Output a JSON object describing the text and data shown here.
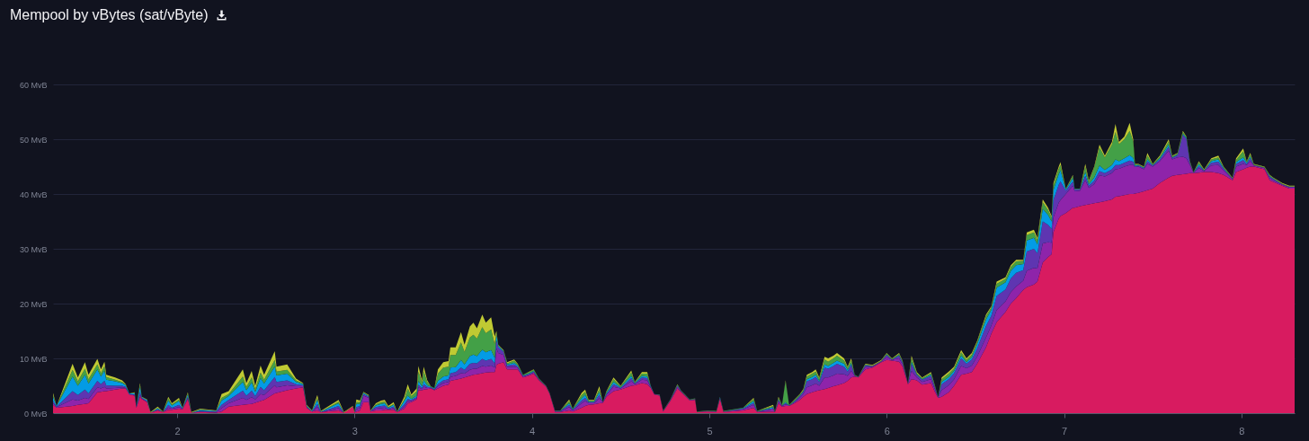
{
  "chart_data": {
    "type": "area",
    "title": "Mempool by vBytes (sat/vByte)",
    "stacked": true,
    "grid": "y",
    "xlim": [
      1.3,
      8.3
    ],
    "xticks": [
      2,
      3,
      4,
      5,
      6,
      7,
      8
    ],
    "ylim": [
      0,
      60
    ],
    "yticks": [
      {
        "value": 0,
        "label": "0 MvB"
      },
      {
        "value": 10,
        "label": "10 MvB"
      },
      {
        "value": 20,
        "label": "20 MvB"
      },
      {
        "value": 30,
        "label": "30 MvB"
      },
      {
        "value": 40,
        "label": "40 MvB"
      },
      {
        "value": 50,
        "label": "50 MvB"
      },
      {
        "value": 60,
        "label": "60 MvB"
      }
    ],
    "x": [
      1.3,
      1.32,
      1.41,
      1.44,
      1.48,
      1.5,
      1.55,
      1.57,
      1.59,
      1.6,
      1.65,
      1.69,
      1.71,
      1.73,
      1.76,
      1.77,
      1.79,
      1.8,
      1.83,
      1.85,
      1.89,
      1.92,
      1.95,
      1.97,
      2.01,
      2.03,
      2.06,
      2.08,
      2.13,
      2.22,
      2.25,
      2.29,
      2.37,
      2.39,
      2.42,
      2.44,
      2.47,
      2.49,
      2.55,
      2.56,
      2.62,
      2.67,
      2.71,
      2.73,
      2.76,
      2.79,
      2.81,
      2.91,
      2.94,
      2.99,
      3.0,
      3.01,
      3.03,
      3.05,
      3.08,
      3.09,
      3.12,
      3.15,
      3.17,
      3.19,
      3.22,
      3.24,
      3.28,
      3.3,
      3.32,
      3.35,
      3.36,
      3.38,
      3.39,
      3.41,
      3.43,
      3.45,
      3.47,
      3.5,
      3.53,
      3.54,
      3.57,
      3.6,
      3.62,
      3.65,
      3.67,
      3.69,
      3.72,
      3.74,
      3.77,
      3.79,
      3.8,
      3.81,
      3.84,
      3.86,
      3.9,
      3.92,
      3.95,
      3.98,
      4.01,
      4.04,
      4.08,
      4.1,
      4.13,
      4.16,
      4.21,
      4.23,
      4.28,
      4.3,
      4.32,
      4.35,
      4.38,
      4.4,
      4.42,
      4.46,
      4.5,
      4.56,
      4.58,
      4.62,
      4.65,
      4.67,
      4.69,
      4.72,
      4.74,
      4.78,
      4.82,
      4.84,
      4.89,
      4.92,
      4.93,
      4.99,
      5.04,
      5.06,
      5.08,
      5.19,
      5.25,
      5.27,
      5.36,
      5.37,
      5.39,
      5.41,
      5.43,
      5.45,
      5.48,
      5.51,
      5.53,
      5.55,
      5.58,
      5.6,
      5.62,
      5.65,
      5.67,
      5.7,
      5.72,
      5.76,
      5.78,
      5.8,
      5.82,
      5.84,
      5.88,
      5.92,
      5.97,
      6.0,
      6.03,
      6.07,
      6.09,
      6.12,
      6.14,
      6.17,
      6.2,
      6.25,
      6.27,
      6.29,
      6.31,
      6.35,
      6.38,
      6.42,
      6.45,
      6.48,
      6.51,
      6.56,
      6.59,
      6.62,
      6.67,
      6.7,
      6.73,
      6.77,
      6.79,
      6.83,
      6.85,
      6.88,
      6.91,
      6.93,
      6.94,
      6.97,
      6.98,
      7.01,
      7.05,
      7.06,
      7.09,
      7.12,
      7.14,
      7.17,
      7.2,
      7.23,
      7.27,
      7.29,
      7.31,
      7.34,
      7.37,
      7.39,
      7.4,
      7.42,
      7.45,
      7.47,
      7.5,
      7.54,
      7.59,
      7.61,
      7.64,
      7.67,
      7.69,
      7.71,
      7.73,
      7.76,
      7.79,
      7.83,
      7.87,
      7.9,
      7.95,
      7.97,
      8.01,
      8.03,
      8.05,
      8.07,
      8.13,
      8.16,
      8.18,
      8.23,
      8.27,
      8.3
    ],
    "series": [
      {
        "color": "#d81b60",
        "values": [
          1.5,
          1.0,
          1.3,
          1.5,
          1.7,
          1.8,
          3.8,
          3.9,
          4.0,
          4.0,
          4.3,
          4.5,
          4.5,
          3.4,
          3.2,
          1.0,
          3.0,
          2.6,
          2.0,
          0.1,
          0.5,
          0.2,
          0.6,
          0.6,
          0.8,
          0.7,
          2.6,
          0.1,
          0.2,
          0.1,
          0.3,
          1.2,
          1.5,
          1.6,
          1.7,
          1.9,
          2.2,
          2.4,
          3.6,
          3.7,
          4.2,
          4.5,
          4.7,
          1.0,
          0.3,
          0.5,
          0.2,
          0.5,
          0.1,
          1.2,
          0.1,
          0.3,
          0.5,
          2.0,
          2.0,
          0.3,
          0.5,
          0.5,
          0.6,
          0.6,
          0.6,
          0.2,
          0.8,
          1.8,
          2.0,
          2.5,
          4.2,
          4.2,
          4.3,
          4.4,
          4.5,
          4.2,
          4.5,
          5.0,
          5.2,
          5.9,
          6.1,
          6.3,
          6.5,
          6.8,
          7.0,
          7.1,
          7.3,
          7.4,
          7.5,
          7.5,
          8.8,
          9.0,
          9.3,
          8.0,
          8.0,
          8.0,
          6.5,
          6.8,
          7.2,
          6.0,
          4.8,
          3.5,
          0.2,
          0.2,
          0.5,
          0.3,
          1.0,
          1.3,
          1.5,
          1.6,
          1.8,
          1.9,
          3.0,
          4.0,
          4.3,
          5.0,
          5.1,
          5.5,
          5.3,
          4.6,
          3.4,
          3.2,
          0.3,
          2.2,
          4.5,
          3.9,
          2.3,
          2.4,
          0.2,
          0.3,
          0.2,
          2.6,
          0.2,
          0.5,
          1.0,
          0.2,
          0.3,
          0.2,
          1.8,
          1.2,
          1.3,
          1.3,
          1.8,
          2.4,
          3.0,
          3.5,
          3.8,
          4.0,
          4.2,
          4.4,
          4.6,
          4.9,
          5.1,
          5.5,
          5.9,
          6.5,
          6.7,
          6.5,
          8.0,
          8.3,
          9.3,
          9.7,
          9.6,
          9.4,
          8.5,
          5.3,
          6.2,
          6.0,
          5.2,
          5.5,
          4.0,
          2.8,
          3.0,
          3.8,
          5.0,
          7.0,
          7.2,
          7.5,
          9.0,
          12.0,
          14.5,
          16.6,
          18.5,
          20.0,
          21.0,
          22.5,
          23.0,
          23.5,
          24.0,
          27.5,
          28.5,
          29.0,
          33.0,
          35.5,
          36.0,
          36.5,
          37.5,
          37.5,
          37.8,
          38.0,
          38.1,
          38.3,
          38.5,
          38.7,
          39.0,
          39.5,
          39.6,
          39.8,
          40.0,
          40.0,
          40.1,
          40.2,
          40.5,
          40.7,
          41.0,
          42.0,
          43.0,
          43.3,
          43.5,
          43.6,
          43.7,
          43.8,
          43.8,
          43.9,
          44.0,
          44.0,
          43.8,
          43.5,
          42.5,
          44.0,
          44.5,
          44.8,
          45.0,
          45.0,
          44.5,
          42.5,
          42.2,
          41.5,
          41.0,
          41.0
        ]
      },
      {
        "color": "#8e24aa",
        "values": [
          0.3,
          0.1,
          1.2,
          0.8,
          1.1,
          0.8,
          0.9,
          0.6,
          0.8,
          0.5,
          0.3,
          0.2,
          0.1,
          0.1,
          0.1,
          0.1,
          0.4,
          0.1,
          0.1,
          0,
          0.1,
          0,
          0.4,
          0.2,
          0.3,
          0.1,
          0.2,
          0,
          0.1,
          0.1,
          0.6,
          0.6,
          1.3,
          0.8,
          1.2,
          0.6,
          1.3,
          0.9,
          1.5,
          1.0,
          0.9,
          0.4,
          0.2,
          0.1,
          0,
          0.6,
          0,
          0.4,
          0,
          0,
          0,
          0.4,
          0.4,
          1.2,
          0.8,
          0.1,
          0.3,
          0.4,
          0.4,
          0.1,
          0.3,
          0,
          0.4,
          0.4,
          0.2,
          0.2,
          0.5,
          0.2,
          0.5,
          0.2,
          0.1,
          0.1,
          0.4,
          0.5,
          0.5,
          0.7,
          0.7,
          1.0,
          0.7,
          1.1,
          1.1,
          1.0,
          1.3,
          1.1,
          1.2,
          0.8,
          3.0,
          2.0,
          1.3,
          0.4,
          0.5,
          0.3,
          0.2,
          0.2,
          0.2,
          0.1,
          0.1,
          0.1,
          0.1,
          0.1,
          0.6,
          0.2,
          0.8,
          0.9,
          0.3,
          0.2,
          0.9,
          0.1,
          0.3,
          0.8,
          0.2,
          0.8,
          0.2,
          0.6,
          0.7,
          0.1,
          0.1,
          0.1,
          0.1,
          0.1,
          0.3,
          0.1,
          0.1,
          0.1,
          0,
          0.1,
          0.1,
          0.1,
          0.1,
          0.2,
          0.5,
          0.1,
          0.4,
          0,
          0.4,
          0.1,
          0.3,
          0.1,
          0.2,
          0.4,
          0.5,
          1.2,
          1.3,
          1.4,
          0.8,
          2.1,
          1.9,
          2.0,
          2.1,
          1.6,
          0.9,
          1.2,
          0.1,
          0.1,
          0.4,
          0.2,
          0.1,
          0.5,
          0.1,
          0.6,
          0.4,
          0.1,
          1.5,
          0.5,
          0.5,
          0.7,
          0.5,
          0.1,
          1.2,
          1.3,
          1.2,
          1.6,
          1.0,
          1.2,
          1.3,
          1.8,
          1.5,
          2.2,
          1.9,
          2.1,
          2.1,
          1.7,
          3.0,
          3.0,
          2.4,
          3.5,
          2.7,
          2.1,
          2.7,
          2.9,
          2.9,
          3.5,
          4.0,
          3.0,
          2.8,
          4.5,
          3.0,
          3.5,
          4.9,
          4.5,
          4.8,
          5.0,
          5.0,
          5.2,
          5.3,
          5.3,
          4.8,
          4.8,
          4.0,
          4.8,
          4.0,
          4.0,
          4.9,
          3.0,
          3.2,
          3.2,
          2.8,
          1.5,
          0.1,
          0.8,
          0.2,
          1.2,
          1.5,
          0.8,
          0.2,
          1.0,
          1.0,
          0.5,
          1.0,
          0.2,
          0.2,
          0.4,
          0.3,
          0.2,
          0.2,
          0.2
        ]
      },
      {
        "color": "#5e35b1",
        "values": [
          0.4,
          0.1,
          1.5,
          1.0,
          1.5,
          1.0,
          1.2,
          0.8,
          1.1,
          0.6,
          0.4,
          0.3,
          0.2,
          0,
          0.1,
          0,
          0.5,
          0.1,
          0.1,
          0,
          0.1,
          0,
          0.5,
          0.2,
          0.4,
          0,
          0.2,
          0,
          0.1,
          0.1,
          0.6,
          0.6,
          1.3,
          0.8,
          1.2,
          0.6,
          1.3,
          0.9,
          1.5,
          1.0,
          0.9,
          0.4,
          0.2,
          0.1,
          0,
          0.6,
          0,
          0.4,
          0,
          0,
          0,
          0.4,
          0.4,
          0.3,
          0.2,
          0,
          0.3,
          0.4,
          0.4,
          0.1,
          0.3,
          0,
          0.4,
          0.4,
          0.2,
          0.2,
          0.5,
          0.2,
          0.5,
          0.2,
          0.1,
          0.1,
          0.4,
          0.5,
          0.5,
          0.7,
          0.7,
          1.0,
          0.7,
          1.1,
          1.1,
          1.0,
          1.3,
          1.1,
          1.2,
          0.8,
          1.5,
          1.0,
          0.6,
          0.3,
          0.4,
          0.2,
          0.1,
          0.1,
          0.2,
          0.1,
          0,
          0,
          0.1,
          0.1,
          0.4,
          0.1,
          0.5,
          0.6,
          0.2,
          0.2,
          0.6,
          0,
          0.2,
          0.5,
          0.1,
          0.6,
          0.1,
          0.4,
          0.4,
          0.1,
          0,
          0,
          0,
          0.1,
          0.2,
          0.1,
          0,
          0.1,
          0,
          0,
          0,
          0.1,
          0,
          0.1,
          0.4,
          0,
          0.2,
          0,
          0.2,
          0.1,
          0.2,
          0,
          0.1,
          0.3,
          0.4,
          1.1,
          1.1,
          1.2,
          0.7,
          1.8,
          1.6,
          1.7,
          1.8,
          1.4,
          0.8,
          1.1,
          0.1,
          0,
          0.3,
          0.1,
          0.1,
          0.4,
          0.1,
          0.5,
          0.3,
          0,
          1.3,
          0.5,
          0.4,
          0.6,
          0.4,
          0,
          1.1,
          1.1,
          1.1,
          1.4,
          0.8,
          1.1,
          1.5,
          2.1,
          1.8,
          2.6,
          2.2,
          2.5,
          2.5,
          1.9,
          3.5,
          3.5,
          2.8,
          4.0,
          3.2,
          2.5,
          3.2,
          3.3,
          3.4,
          0.6,
          0.8,
          0.3,
          0.2,
          0.8,
          0.4,
          0.6,
          0.8,
          0.6,
          0.7,
          0.8,
          0.7,
          0.7,
          0.8,
          0.6,
          0.2,
          0.2,
          0.2,
          0.5,
          0.2,
          0.3,
          0.7,
          0.3,
          0.4,
          4.0,
          3.5,
          0.3,
          0,
          0.4,
          0.1,
          0.5,
          0.6,
          0.3,
          0.1,
          0.5,
          0.7,
          0.2,
          0.5,
          0.1,
          0.1,
          0.2,
          0.2,
          0.1,
          0.1,
          0.1
        ]
      },
      {
        "color": "#039be5",
        "values": [
          0.8,
          0.1,
          2.7,
          1.7,
          2.7,
          1.8,
          2.1,
          1.4,
          1.9,
          1.0,
          0.8,
          0.5,
          0.3,
          0.1,
          0.2,
          0.1,
          0.9,
          0.1,
          0.2,
          0,
          0.2,
          0,
          0.8,
          0.4,
          0.7,
          0.1,
          0.4,
          0,
          0.2,
          0.1,
          0.8,
          0.7,
          1.6,
          1.0,
          1.5,
          0.8,
          1.6,
          1.2,
          1.9,
          1.2,
          1.2,
          0.4,
          0.2,
          0.1,
          0.1,
          0.7,
          0.1,
          0.5,
          0,
          0,
          0,
          0.6,
          0.4,
          0.2,
          0.1,
          0,
          0.3,
          0.4,
          0.4,
          0.2,
          0.3,
          0,
          0.6,
          0.6,
          0.2,
          0.3,
          0.7,
          0.3,
          0.7,
          0.3,
          0.1,
          0.1,
          0.6,
          0.7,
          0.7,
          1.0,
          0.9,
          1.4,
          1.0,
          1.4,
          1.5,
          1.3,
          1.7,
          1.5,
          1.6,
          1.0,
          1.0,
          0.3,
          0.1,
          0.2,
          0.3,
          0.2,
          0.1,
          0.1,
          0.1,
          0,
          0,
          0,
          0,
          0,
          0.3,
          0.1,
          0.4,
          0.5,
          0.1,
          0.1,
          0.5,
          0,
          0.2,
          0.4,
          0.1,
          0.4,
          0.1,
          0.3,
          0.3,
          0.1,
          0,
          0,
          0,
          0,
          0.1,
          0,
          0,
          0,
          0,
          0,
          0,
          0.1,
          0,
          0.1,
          0.3,
          0,
          0.2,
          0,
          0.2,
          0,
          0.2,
          0,
          0.1,
          0.1,
          0.1,
          0.4,
          0.4,
          0.4,
          0.2,
          0.6,
          0.5,
          0.6,
          0.6,
          0.5,
          0.3,
          0.3,
          0,
          0,
          0.1,
          0,
          0,
          0.1,
          0,
          0.1,
          0.1,
          0,
          0.4,
          0.1,
          0.1,
          0.2,
          0.1,
          0,
          0.4,
          0.4,
          0.4,
          0.5,
          0.3,
          0.4,
          0.8,
          1.2,
          1.0,
          1.5,
          1.3,
          1.4,
          1.4,
          1.1,
          2.0,
          2.0,
          1.6,
          2.3,
          1.8,
          1.4,
          1.8,
          1.9,
          2.0,
          0.2,
          0.6,
          0.1,
          0.1,
          0.7,
          0.3,
          0.6,
          1.0,
          0.6,
          0.8,
          1.0,
          0.7,
          0.8,
          1.0,
          0.7,
          0.1,
          0.1,
          0.1,
          0.3,
          0.1,
          0.2,
          0.4,
          0.1,
          0.1,
          0.2,
          0.2,
          0.1,
          0,
          0.3,
          0,
          0.3,
          0.4,
          0.1,
          0,
          0.3,
          0.5,
          0.2,
          0.3,
          0,
          0,
          0.1,
          0.1,
          0,
          0,
          0
        ]
      },
      {
        "color": "#43a047",
        "values": [
          0.3,
          0,
          1.2,
          0.8,
          1.1,
          0.8,
          0.9,
          0.6,
          0.8,
          0.5,
          0.3,
          0.2,
          0.1,
          0,
          0.1,
          0,
          0.4,
          0,
          0,
          0,
          0.1,
          0,
          0.4,
          0.2,
          0.3,
          0,
          0.2,
          0,
          0.1,
          0,
          0.5,
          0.4,
          1.0,
          0.6,
          0.9,
          0.5,
          1.0,
          0.7,
          1.2,
          0.7,
          0.7,
          0.3,
          0.1,
          0.1,
          0,
          0.4,
          0,
          0.3,
          0,
          0,
          0,
          0.3,
          0.3,
          0.1,
          0.1,
          0,
          0.2,
          0.3,
          0.3,
          0.1,
          0.2,
          0,
          0.3,
          1.3,
          0.5,
          0.8,
          1.7,
          0.7,
          1.6,
          0.6,
          0.1,
          0.1,
          1.3,
          1.6,
          1.6,
          2.3,
          2.2,
          3.2,
          2.3,
          3.4,
          3.6,
          3.2,
          4.1,
          3.5,
          3.8,
          2.5,
          0.4,
          0.1,
          0.1,
          0.2,
          0.4,
          0.2,
          0.1,
          0.2,
          0.2,
          0.1,
          0.1,
          0.1,
          0.1,
          0.1,
          0.4,
          0.1,
          0.6,
          0.6,
          0.2,
          0.2,
          0.6,
          0,
          0.2,
          0.5,
          0.2,
          0.6,
          0.1,
          0.4,
          0.5,
          0.1,
          0,
          0.1,
          0.1,
          0.1,
          0.1,
          0.1,
          0.1,
          0.1,
          0.1,
          0.1,
          0.1,
          0.1,
          0.1,
          0.1,
          0.4,
          0.1,
          0.2,
          0.1,
          0.2,
          0.1,
          3.8,
          0.1,
          0.2,
          0.2,
          0.2,
          0.5,
          0.6,
          0.6,
          0.4,
          0.9,
          0.8,
          0.8,
          0.9,
          0.6,
          0.4,
          0.5,
          0.1,
          0.1,
          0.1,
          0.1,
          0.1,
          0.2,
          0.1,
          0.2,
          0.1,
          0.1,
          0.7,
          0.2,
          0.2,
          0.3,
          0.2,
          0.1,
          0.5,
          0.6,
          0.5,
          0.6,
          0.4,
          0.5,
          0.4,
          0.6,
          0.5,
          0.7,
          0.6,
          0.7,
          0.7,
          0.6,
          1.0,
          1.0,
          0.8,
          1.2,
          0.9,
          0.7,
          0.9,
          1.0,
          1.0,
          0.1,
          0.4,
          0.1,
          0.1,
          1.0,
          0.5,
          1.8,
          3.3,
          2.3,
          3.7,
          5.0,
          3.1,
          3.5,
          4.4,
          3.0,
          0.2,
          0.1,
          0.1,
          0.7,
          0.1,
          0.3,
          0.6,
          0.2,
          0.2,
          0.3,
          0.2,
          0.2,
          0.1,
          0.4,
          0.1,
          0.3,
          0.4,
          0.2,
          0.1,
          0.4,
          1.1,
          0.2,
          0.4,
          0.1,
          0.1,
          0.2,
          0.1,
          0.1,
          0.1,
          0.1
        ]
      },
      {
        "color": "#c0ca33",
        "values": [
          0.4,
          0,
          1.1,
          0.7,
          1.2,
          0.8,
          1.0,
          0.7,
          0.8,
          0.4,
          0.4,
          0.3,
          0.1,
          0,
          0.1,
          0,
          0.3,
          0.1,
          0.1,
          0.1,
          0.2,
          0.1,
          0.3,
          0.2,
          0.3,
          0.1,
          0.2,
          0.1,
          0.1,
          0.1,
          0.7,
          0.5,
          1.3,
          0.7,
          1.2,
          0.6,
          1.3,
          0.9,
          1.6,
          0.9,
          1.0,
          0.3,
          0.1,
          0.1,
          0.1,
          0.5,
          0.1,
          0.3,
          0.1,
          0.1,
          0.1,
          0.5,
          0.3,
          0.1,
          0.1,
          0.1,
          0.2,
          0.3,
          0.3,
          0.2,
          0.3,
          0.1,
          0.5,
          0.8,
          0.3,
          0.5,
          1.0,
          0.4,
          0.9,
          0.3,
          0,
          0,
          0.8,
          1.0,
          1.0,
          1.4,
          1.4,
          1.9,
          1.3,
          2.0,
          2.2,
          1.9,
          2.3,
          1.9,
          2.2,
          1.4,
          0.3,
          0.1,
          0.1,
          0.2,
          0.2,
          0.1,
          0,
          0.1,
          0.1,
          0,
          0,
          0,
          0,
          0,
          0.3,
          0,
          0.4,
          0.4,
          0.1,
          0.1,
          0.5,
          0,
          0.1,
          0.3,
          0.1,
          0.4,
          0.1,
          0.3,
          0.3,
          0,
          0,
          0,
          0,
          0,
          0.1,
          0,
          0,
          0,
          0,
          0,
          0,
          0,
          0,
          0,
          0.2,
          0,
          0.2,
          0,
          0.2,
          0,
          0.2,
          0,
          0.1,
          0.1,
          0.2,
          0.3,
          0.3,
          0.4,
          0.2,
          0.5,
          0.6,
          0.5,
          0.5,
          0.4,
          0.2,
          0.4,
          0,
          0,
          0.1,
          0.1,
          0.1,
          0.1,
          0.1,
          0.2,
          0.1,
          0,
          0.4,
          0.2,
          0.1,
          0.2,
          0.1,
          0,
          0.3,
          0.4,
          0.3,
          0.4,
          0.3,
          0.3,
          0.2,
          0.3,
          0.2,
          0.4,
          0.3,
          0.3,
          0.3,
          0.2,
          0.5,
          0.5,
          0.4,
          0.5,
          0.4,
          0.3,
          0.4,
          0.4,
          0.5,
          0.1,
          0.2,
          0,
          0,
          0.5,
          0.2,
          0.2,
          0.5,
          0.3,
          0.5,
          1.5,
          0.4,
          0.5,
          1.5,
          0.4,
          0.1,
          0.1,
          0.1,
          0.5,
          0.1,
          0.2,
          0.4,
          0.1,
          0.1,
          0.2,
          0.1,
          0.1,
          0,
          0.2,
          0.1,
          0.2,
          0.3,
          0.1,
          0.1,
          0.3,
          0.5,
          0.1,
          0.3,
          0.1,
          0.1,
          0.1,
          0.1,
          0.1,
          0.1,
          0.1
        ]
      }
    ]
  }
}
